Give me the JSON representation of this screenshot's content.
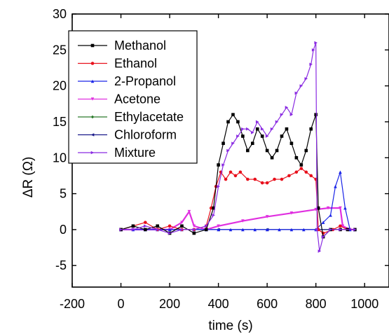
{
  "chart_data": {
    "type": "line",
    "title": "",
    "xlabel": "time (s)",
    "ylabel": "ΔR (Ω)",
    "xlim": [
      -200,
      1100
    ],
    "ylim": [
      -8,
      30
    ],
    "xticks": [
      -200,
      0,
      200,
      400,
      600,
      800,
      1000
    ],
    "yticks": [
      -5,
      0,
      5,
      10,
      15,
      20,
      25,
      30
    ],
    "xtick_labels": [
      "-200",
      "0",
      "200",
      "400",
      "600",
      "800",
      "1000"
    ],
    "ytick_labels": [
      "-5",
      "0",
      "5",
      "10",
      "15",
      "20",
      "25",
      "30"
    ],
    "grid": false,
    "legend_position": "top-left",
    "series": [
      {
        "name": "Methanol",
        "color": "#000000",
        "marker": "square",
        "x": [
          0,
          50,
          100,
          150,
          200,
          250,
          300,
          350,
          380,
          400,
          420,
          440,
          460,
          480,
          500,
          520,
          540,
          560,
          580,
          600,
          620,
          640,
          660,
          680,
          700,
          720,
          740,
          760,
          780,
          800,
          810,
          830,
          860,
          900,
          930,
          960
        ],
        "y": [
          0,
          0.5,
          0,
          0.5,
          -0.5,
          0.5,
          -0.5,
          0,
          3,
          9,
          12,
          15,
          16,
          15,
          13,
          11,
          12,
          14,
          13,
          11,
          10,
          11,
          13,
          14,
          12,
          10,
          9,
          11,
          14,
          16,
          3,
          -1,
          0,
          0,
          0,
          0
        ]
      },
      {
        "name": "Ethanol",
        "color": "#e8101c",
        "marker": "circle",
        "x": [
          0,
          50,
          100,
          150,
          200,
          250,
          300,
          350,
          370,
          390,
          410,
          430,
          450,
          470,
          490,
          520,
          550,
          580,
          600,
          630,
          660,
          690,
          720,
          740,
          760,
          780,
          800,
          810,
          830,
          870,
          900,
          930,
          960
        ],
        "y": [
          0,
          0.5,
          1,
          0,
          0.5,
          0,
          0,
          0.5,
          3,
          6,
          8,
          7,
          8,
          7.5,
          8,
          7,
          7,
          6.5,
          6.5,
          7,
          7,
          7.5,
          8,
          8.5,
          8,
          7.5,
          7,
          0,
          -0.5,
          0,
          0.5,
          0,
          0
        ]
      },
      {
        "name": "2-Propanol",
        "color": "#1a24e8",
        "marker": "triangle-up",
        "x": [
          0,
          50,
          100,
          150,
          200,
          250,
          300,
          350,
          400,
          450,
          500,
          550,
          600,
          650,
          700,
          750,
          800,
          830,
          860,
          880,
          900,
          920,
          940,
          960
        ],
        "y": [
          0,
          0,
          0,
          0,
          0,
          0,
          0,
          0,
          0,
          0,
          0,
          0,
          0,
          0,
          0,
          0,
          0,
          1,
          2,
          6,
          8,
          3,
          0,
          0
        ]
      },
      {
        "name": "Acetone",
        "color": "#e030e0",
        "marker": "triangle-down",
        "x": [
          0,
          50,
          100,
          150,
          200,
          250,
          280,
          300,
          350,
          400,
          500,
          600,
          700,
          800,
          850,
          900,
          910,
          940,
          960
        ],
        "y": [
          0,
          0,
          0,
          0,
          0,
          1,
          2.5,
          0.5,
          0,
          0.5,
          1.2,
          1.8,
          2.3,
          2.8,
          3,
          3,
          0.5,
          0,
          0
        ]
      },
      {
        "name": "Ethylacetate",
        "color": "#2a7a2a",
        "marker": "diamond",
        "x": [
          0,
          200,
          400,
          600,
          800,
          960
        ],
        "y": [
          0,
          0,
          0,
          0,
          0,
          0
        ]
      },
      {
        "name": "Chloroform",
        "color": "#1a1a8a",
        "marker": "triangle-left",
        "x": [
          0,
          200,
          400,
          600,
          800,
          960
        ],
        "y": [
          0,
          0,
          0,
          0,
          0,
          0
        ]
      },
      {
        "name": "Mixture",
        "color": "#8a2be2",
        "marker": "triangle-right",
        "x": [
          0,
          50,
          100,
          150,
          200,
          250,
          300,
          350,
          380,
          400,
          420,
          440,
          460,
          480,
          500,
          520,
          540,
          560,
          580,
          600,
          620,
          640,
          660,
          680,
          700,
          720,
          740,
          760,
          780,
          790,
          800,
          805,
          815,
          830,
          860,
          900,
          960
        ],
        "y": [
          0,
          0,
          0.5,
          0,
          -0.5,
          0,
          0,
          0.5,
          2,
          6,
          9,
          11,
          12,
          13,
          14,
          14,
          13.5,
          15,
          14,
          13,
          14,
          15,
          16,
          17,
          16,
          19,
          20,
          21,
          23,
          25,
          26,
          0,
          -3,
          -1,
          0,
          0,
          0
        ]
      }
    ]
  }
}
